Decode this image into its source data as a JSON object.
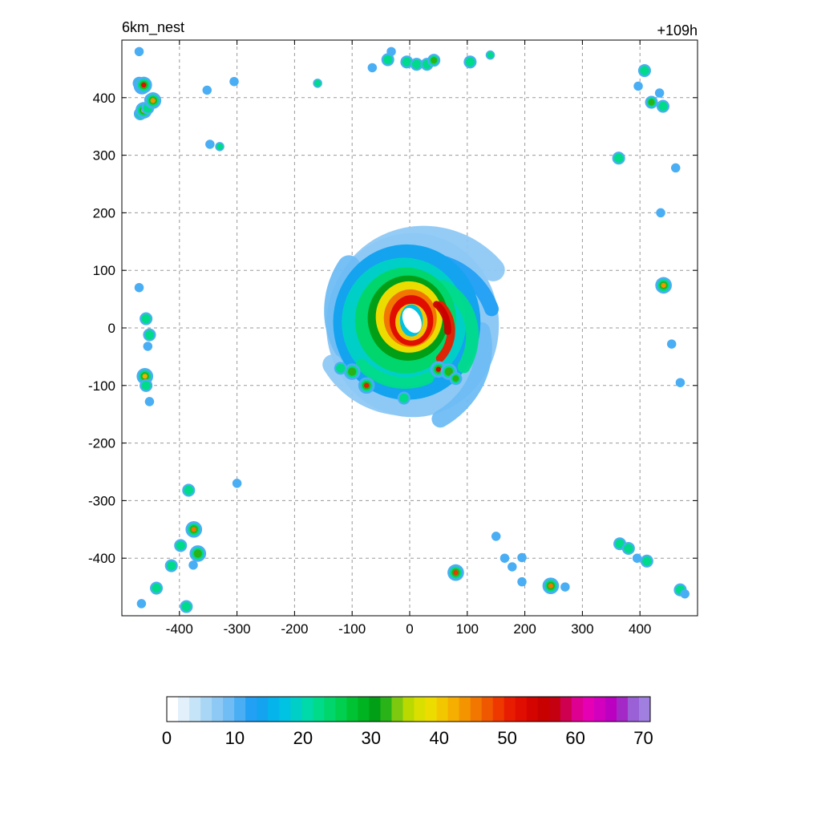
{
  "chart_data": {
    "type": "heatmap",
    "title_left": "6km_nest",
    "title_right": "+109h",
    "x_ticks": [
      -400,
      -300,
      -200,
      -100,
      0,
      100,
      200,
      300,
      400
    ],
    "y_ticks": [
      400,
      300,
      200,
      100,
      0,
      -100,
      -200,
      -300,
      -400
    ],
    "xlim": [
      -500,
      500
    ],
    "ylim": [
      -500,
      500
    ],
    "grid": true,
    "colorbar": {
      "min": 0,
      "max": 71,
      "tick_values": [
        0,
        10,
        20,
        30,
        40,
        50,
        60,
        70
      ],
      "tick_labels": [
        "0",
        "10",
        "20",
        "30",
        "40",
        "50",
        "60",
        "70"
      ],
      "colors": [
        "#ffffff",
        "#e1f0fb",
        "#c6e4f8",
        "#aad6f6",
        "#8ec9f5",
        "#6fbdf4",
        "#4aaef4",
        "#22a0f3",
        "#14a3ef",
        "#06b4ec",
        "#00c2e2",
        "#00cfc8",
        "#00d9aa",
        "#00db8a",
        "#00d66c",
        "#00cf50",
        "#00c334",
        "#00b321",
        "#009f16",
        "#2ab219",
        "#7cc910",
        "#b9d900",
        "#dbdf00",
        "#eddc00",
        "#f3c700",
        "#f6ae00",
        "#f49500",
        "#f27700",
        "#f05800",
        "#ee3800",
        "#e81c00",
        "#e00e00",
        "#d40400",
        "#c80000",
        "#c40011",
        "#cf0050",
        "#de0090",
        "#e600b4",
        "#d200be",
        "#bb00c2",
        "#a428c6",
        "#9a60d6",
        "#a07fe0"
      ]
    },
    "cells_unit": "km",
    "cells": [
      [
        -470,
        480,
        8
      ],
      [
        -466,
        -479,
        12
      ],
      [
        -470,
        425,
        24
      ],
      [
        -465,
        420,
        40
      ],
      [
        -462,
        422,
        52
      ],
      [
        -468,
        372,
        22
      ],
      [
        -462,
        378,
        42
      ],
      [
        -455,
        382,
        28
      ],
      [
        -450,
        396,
        22
      ],
      [
        -446,
        395,
        44
      ],
      [
        -352,
        413,
        14
      ],
      [
        -347,
        319,
        18
      ],
      [
        -330,
        315,
        20
      ],
      [
        -305,
        428,
        8
      ],
      [
        -160,
        425,
        20
      ],
      [
        -38,
        466,
        26
      ],
      [
        -32,
        480,
        14
      ],
      [
        -5,
        462,
        22
      ],
      [
        12,
        458,
        30
      ],
      [
        30,
        458,
        28
      ],
      [
        42,
        465,
        32
      ],
      [
        105,
        462,
        26
      ],
      [
        140,
        474,
        20
      ],
      [
        -65,
        452,
        8
      ],
      [
        408,
        447,
        26
      ],
      [
        397,
        420,
        16
      ],
      [
        420,
        392,
        34
      ],
      [
        434,
        408,
        14
      ],
      [
        440,
        385,
        22
      ],
      [
        363,
        295,
        22
      ],
      [
        436,
        200,
        16
      ],
      [
        441,
        74,
        44
      ],
      [
        455,
        -28,
        10
      ],
      [
        470,
        -95,
        8
      ],
      [
        462,
        278,
        6
      ],
      [
        -458,
        16,
        22
      ],
      [
        -452,
        -12,
        22
      ],
      [
        -455,
        -32,
        14
      ],
      [
        -460,
        -84,
        42
      ],
      [
        -458,
        -100,
        22
      ],
      [
        -452,
        -128,
        18
      ],
      [
        -470,
        70,
        8
      ],
      [
        -384,
        -282,
        24
      ],
      [
        -300,
        -270,
        18
      ],
      [
        -375,
        -350,
        46
      ],
      [
        -368,
        -392,
        40
      ],
      [
        -376,
        -412,
        12
      ],
      [
        -398,
        -378,
        22
      ],
      [
        -414,
        -413,
        26
      ],
      [
        -440,
        -452,
        26
      ],
      [
        -388,
        -484,
        30
      ],
      [
        80,
        -425,
        48
      ],
      [
        150,
        -362,
        12
      ],
      [
        165,
        -400,
        8
      ],
      [
        178,
        -415,
        10
      ],
      [
        195,
        -399,
        8
      ],
      [
        195,
        -441,
        12
      ],
      [
        245,
        -448,
        46
      ],
      [
        270,
        -450,
        14
      ],
      [
        365,
        -375,
        26
      ],
      [
        380,
        -383,
        22
      ],
      [
        395,
        -400,
        18
      ],
      [
        412,
        -405,
        24
      ],
      [
        470,
        -455,
        24
      ],
      [
        478,
        -462,
        12
      ],
      [
        -100,
        -76,
        38
      ],
      [
        -75,
        -100,
        50
      ],
      [
        -120,
        -70,
        28
      ],
      [
        -10,
        -122,
        30
      ],
      [
        50,
        -72,
        54
      ],
      [
        68,
        -76,
        40
      ],
      [
        80,
        -88,
        32
      ]
    ]
  }
}
